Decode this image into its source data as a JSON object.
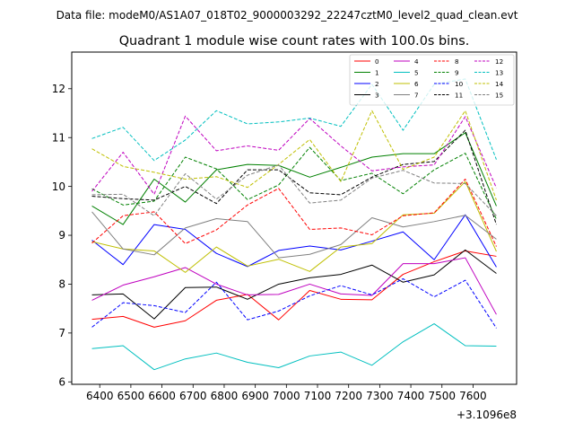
{
  "figure": {
    "suptitle": "Data file: modeM0/AS1A07_018T02_9000003292_22247cztM0_level2_quad_clean.evt",
    "title": "Quadrant 1 module wise count rates with 100.0s bins.",
    "x_offset_label": "+3.1096e8"
  },
  "chart_data": {
    "type": "line",
    "title": "Quadrant 1 module wise count rates with 100.0s bins.",
    "xlabel": "",
    "ylabel": "",
    "x_offset": 310960000,
    "x": [
      6375,
      6475,
      6575,
      6675,
      6775,
      6875,
      6975,
      7075,
      7175,
      7275,
      7375,
      7475,
      7575,
      7675
    ],
    "xlim": [
      6310,
      7740
    ],
    "ylim": [
      5.95,
      12.75
    ],
    "xticks": [
      6400,
      6500,
      6600,
      6700,
      6800,
      6900,
      7000,
      7100,
      7200,
      7300,
      7400,
      7500,
      7600
    ],
    "xtick_labels": [
      "6400",
      "6500",
      "6600",
      "6700",
      "6800",
      "6900",
      "7000",
      "7100",
      "7200",
      "7300",
      "7400",
      "7500",
      "7600"
    ],
    "yticks": [
      6,
      7,
      8,
      9,
      10,
      11,
      12
    ],
    "ytick_labels": [
      "6",
      "7",
      "8",
      "9",
      "10",
      "11",
      "12"
    ],
    "grid": false,
    "legend_position": "top-right",
    "legend_columns": 4,
    "series": [
      {
        "name": "0",
        "color": "#ff0000",
        "dash": "solid",
        "values": [
          7.28,
          7.34,
          7.12,
          7.25,
          7.67,
          7.79,
          7.27,
          7.87,
          7.69,
          7.68,
          8.2,
          8.46,
          8.68,
          8.57
        ]
      },
      {
        "name": "1",
        "color": "#008000",
        "dash": "solid",
        "values": [
          9.6,
          9.22,
          10.15,
          9.68,
          10.34,
          10.45,
          10.43,
          10.19,
          10.39,
          10.6,
          10.67,
          10.67,
          11.1,
          9.6
        ]
      },
      {
        "name": "2",
        "color": "#0000ff",
        "dash": "solid",
        "values": [
          8.9,
          8.4,
          9.22,
          9.12,
          8.63,
          8.36,
          8.69,
          8.78,
          8.7,
          8.88,
          9.07,
          8.5,
          9.42,
          8.35
        ]
      },
      {
        "name": "3",
        "color": "#000000",
        "dash": "solid",
        "values": [
          7.78,
          7.8,
          7.29,
          7.93,
          7.94,
          7.69,
          8.0,
          8.13,
          8.2,
          8.39,
          8.04,
          8.19,
          8.7,
          8.22
        ]
      },
      {
        "name": "4",
        "color": "#bf00bf",
        "dash": "solid",
        "values": [
          7.67,
          7.98,
          8.15,
          8.34,
          8.0,
          7.78,
          7.79,
          8.0,
          7.8,
          7.77,
          8.42,
          8.42,
          8.54,
          7.38
        ]
      },
      {
        "name": "5",
        "color": "#00bfbf",
        "dash": "solid",
        "values": [
          6.68,
          6.74,
          6.25,
          6.47,
          6.59,
          6.4,
          6.29,
          6.53,
          6.61,
          6.34,
          6.82,
          7.19,
          6.74,
          6.73
        ]
      },
      {
        "name": "6",
        "color": "#bfbf00",
        "dash": "solid",
        "values": [
          8.87,
          8.72,
          8.68,
          8.24,
          8.76,
          8.37,
          8.51,
          8.26,
          8.76,
          8.83,
          9.42,
          9.45,
          10.1,
          8.67
        ]
      },
      {
        "name": "7",
        "color": "#808080",
        "dash": "solid",
        "values": [
          9.48,
          8.72,
          8.6,
          9.15,
          9.34,
          9.28,
          8.54,
          8.61,
          8.81,
          9.36,
          9.17,
          9.28,
          9.41,
          8.92
        ]
      },
      {
        "name": "8",
        "color": "#ff0000",
        "dash": "dashed",
        "values": [
          8.84,
          9.4,
          9.48,
          8.83,
          9.11,
          9.62,
          9.96,
          9.12,
          9.15,
          9.01,
          9.4,
          9.46,
          10.15,
          8.77
        ]
      },
      {
        "name": "9",
        "color": "#008000",
        "dash": "dashed",
        "values": [
          9.95,
          9.62,
          9.7,
          10.6,
          10.36,
          9.73,
          10.03,
          10.8,
          10.12,
          10.27,
          9.85,
          10.34,
          10.68,
          9.33
        ]
      },
      {
        "name": "10",
        "color": "#0000ff",
        "dash": "dashed",
        "values": [
          7.12,
          7.62,
          7.56,
          7.42,
          8.04,
          7.27,
          7.45,
          7.76,
          7.97,
          7.78,
          8.11,
          7.74,
          8.08,
          7.1
        ]
      },
      {
        "name": "11",
        "color": "#000000",
        "dash": "dashed",
        "values": [
          9.8,
          9.75,
          9.72,
          10.0,
          9.65,
          10.34,
          10.34,
          9.87,
          9.83,
          10.19,
          10.45,
          10.51,
          11.15,
          9.22
        ]
      },
      {
        "name": "12",
        "color": "#bf00bf",
        "dash": "dashed",
        "values": [
          9.9,
          10.7,
          9.84,
          11.44,
          10.73,
          10.83,
          10.74,
          11.39,
          10.83,
          10.32,
          10.4,
          10.44,
          11.43,
          9.97
        ]
      },
      {
        "name": "13",
        "color": "#00bfbf",
        "dash": "dashed",
        "values": [
          10.98,
          11.21,
          10.53,
          10.95,
          11.55,
          11.28,
          11.32,
          11.4,
          11.23,
          12.09,
          11.15,
          12.09,
          12.2,
          10.55
        ]
      },
      {
        "name": "14",
        "color": "#bfbf00",
        "dash": "dashed",
        "values": [
          10.77,
          10.41,
          10.29,
          10.15,
          10.2,
          9.98,
          10.45,
          10.96,
          10.1,
          11.55,
          10.35,
          10.6,
          11.55,
          9.72
        ]
      },
      {
        "name": "15",
        "color": "#808080",
        "dash": "dashed",
        "values": [
          9.83,
          9.84,
          9.4,
          10.26,
          9.74,
          10.23,
          10.44,
          9.66,
          9.72,
          10.17,
          10.33,
          10.07,
          10.06,
          9.4
        ]
      }
    ]
  }
}
